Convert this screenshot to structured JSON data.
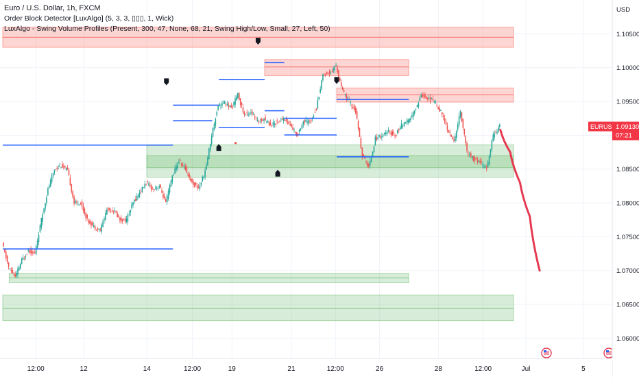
{
  "header": {
    "title": "Euro / U.S. Dollar, 1h, FXCM",
    "indicator_1": "Order Block Detector [LuxAlgo] (5, 3, 3, ▯▯▯, 1, Wick)",
    "indicator_2": "LuxAlgo - Swing Volume Profiles (Present, 300, 47, None, 68, 21, Swing High/Low, Small, 27, Left, 50)"
  },
  "price_axis": {
    "currency": "USD"
  },
  "current_price": {
    "symbol": "EURUSD",
    "price": "1.09130",
    "countdown": "07:21"
  },
  "colors": {
    "up": "#26a69a",
    "down": "#ef5350",
    "level_line": "#2962ff",
    "demand_zone": "#4caf50",
    "supply_zone": "#f44336",
    "projection": "#e53950",
    "swing_marker": "#131722"
  },
  "chart_data": {
    "type": "candlestick",
    "instrument": "EURUSD",
    "timeframe": "1h",
    "y_range": [
      1.057,
      1.11
    ],
    "y_ticks": [
      "1.10500",
      "1.10000",
      "1.09500",
      "1.09000",
      "1.08500",
      "1.08000",
      "1.07500",
      "1.07000",
      "1.06500",
      "1.06000"
    ],
    "x_ticks": [
      "12:00",
      "12",
      "14",
      "12:00",
      "19",
      "21",
      "12:00",
      "26",
      "28",
      "12:00",
      "Jul",
      "5"
    ],
    "path": [
      [
        0,
        1.074
      ],
      [
        1,
        1.0705
      ],
      [
        2,
        1.069
      ],
      [
        3,
        1.0715
      ],
      [
        4,
        1.073
      ],
      [
        5,
        1.0725
      ],
      [
        6,
        1.0775
      ],
      [
        7,
        1.082
      ],
      [
        8,
        1.085
      ],
      [
        9,
        1.0855
      ],
      [
        10,
        1.0848
      ],
      [
        11,
        1.08
      ],
      [
        12,
        1.08
      ],
      [
        13,
        1.0775
      ],
      [
        14,
        1.0765
      ],
      [
        15,
        1.076
      ],
      [
        16,
        1.079
      ],
      [
        17,
        1.079
      ],
      [
        18,
        1.0775
      ],
      [
        19,
        1.0775
      ],
      [
        20,
        1.08
      ],
      [
        21,
        1.0815
      ],
      [
        22,
        1.083
      ],
      [
        23,
        1.082
      ],
      [
        24,
        1.0825
      ],
      [
        25,
        1.08
      ],
      [
        26,
        1.084
      ],
      [
        27,
        1.0862
      ],
      [
        28,
        1.085
      ],
      [
        29,
        1.083
      ],
      [
        30,
        1.0822
      ],
      [
        31,
        1.0846
      ],
      [
        32,
        1.09
      ],
      [
        33,
        1.0945
      ],
      [
        34,
        1.0948
      ],
      [
        35,
        1.094
      ],
      [
        36,
        1.096
      ],
      [
        37,
        1.093
      ],
      [
        38,
        1.0935
      ],
      [
        39,
        1.092
      ],
      [
        40,
        1.0925
      ],
      [
        41,
        1.0915
      ],
      [
        42,
        1.092
      ],
      [
        43,
        1.0925
      ],
      [
        44,
        1.0915
      ],
      [
        45,
        1.09
      ],
      [
        46,
        1.092
      ],
      [
        47,
        1.092
      ],
      [
        48,
        1.094
      ],
      [
        49,
        1.099
      ],
      [
        50,
        1.0992
      ],
      [
        51,
        1.1002
      ],
      [
        52,
        1.0965
      ],
      [
        53,
        1.095
      ],
      [
        54,
        1.0935
      ],
      [
        55,
        1.087
      ],
      [
        56,
        1.0853
      ],
      [
        57,
        1.0895
      ],
      [
        58,
        1.09
      ],
      [
        59,
        1.0905
      ],
      [
        60,
        1.09
      ],
      [
        61,
        1.0915
      ],
      [
        62,
        1.092
      ],
      [
        63,
        1.0935
      ],
      [
        64,
        1.096
      ],
      [
        65,
        1.0955
      ],
      [
        66,
        1.095
      ],
      [
        67,
        1.0935
      ],
      [
        68,
        1.091
      ],
      [
        69,
        1.089
      ],
      [
        70,
        1.0935
      ],
      [
        71,
        1.0875
      ],
      [
        72,
        1.0865
      ],
      [
        73,
        1.086
      ],
      [
        74,
        1.085
      ],
      [
        75,
        1.09
      ],
      [
        76,
        1.0913
      ]
    ],
    "swing_highs": [
      [
        25,
        1.0978
      ],
      [
        39,
        1.1038
      ],
      [
        51,
        1.098
      ]
    ],
    "swing_lows": [
      [
        33,
        1.0883
      ],
      [
        42,
        1.0845
      ]
    ],
    "levels": [
      {
        "price": 1.08855,
        "x_start": 0,
        "x_end": 26
      },
      {
        "price": 1.0732,
        "x_start": 0,
        "x_end": 26
      },
      {
        "price": 1.09445,
        "x_start": 26,
        "x_end": 33
      },
      {
        "price": 1.09215,
        "x_start": 26,
        "x_end": 32
      },
      {
        "price": 1.09115,
        "x_start": 33,
        "x_end": 40
      },
      {
        "price": 1.09823,
        "x_start": 33,
        "x_end": 40
      },
      {
        "price": 1.10074,
        "x_start": 40,
        "x_end": 43
      },
      {
        "price": 1.09363,
        "x_start": 40,
        "x_end": 43
      },
      {
        "price": 1.09251,
        "x_start": 43,
        "x_end": 51
      },
      {
        "price": 1.09005,
        "x_start": 43,
        "x_end": 51
      },
      {
        "price": 1.0953,
        "x_start": 51,
        "x_end": 62
      },
      {
        "price": 1.08681,
        "x_start": 51,
        "x_end": 62
      }
    ],
    "demand_zones": [
      {
        "top": 1.0886,
        "bottom": 1.0838,
        "x_start": 22,
        "x_end": 78
      },
      {
        "top": 1.087,
        "bottom": 1.0852,
        "x_start": 22,
        "x_end": 78
      },
      {
        "top": 1.0696,
        "bottom": 1.0689,
        "x_start": 1,
        "x_end": 62
      },
      {
        "top": 1.0689,
        "bottom": 1.0682,
        "x_start": 1,
        "x_end": 62
      },
      {
        "top": 1.0664,
        "bottom": 1.0644,
        "x_start": 0,
        "x_end": 78
      },
      {
        "top": 1.0644,
        "bottom": 1.0626,
        "x_start": 0,
        "x_end": 78
      }
    ],
    "supply_zones": [
      {
        "top": 1.106,
        "bottom": 1.1045,
        "x_start": 0,
        "x_end": 78
      },
      {
        "top": 1.1045,
        "bottom": 1.103,
        "x_start": 0,
        "x_end": 78
      },
      {
        "top": 1.1012,
        "bottom": 1.1001,
        "x_start": 40,
        "x_end": 62
      },
      {
        "top": 1.1001,
        "bottom": 1.0988,
        "x_start": 40,
        "x_end": 62
      },
      {
        "top": 1.097,
        "bottom": 1.096,
        "x_start": 51,
        "x_end": 78
      },
      {
        "top": 1.096,
        "bottom": 1.0949,
        "x_start": 51,
        "x_end": 78
      }
    ],
    "projection": [
      [
        76,
        1.0908
      ],
      [
        77.5,
        1.0875
      ],
      [
        79,
        1.083
      ],
      [
        80.5,
        1.078
      ],
      [
        82,
        1.07
      ]
    ]
  }
}
